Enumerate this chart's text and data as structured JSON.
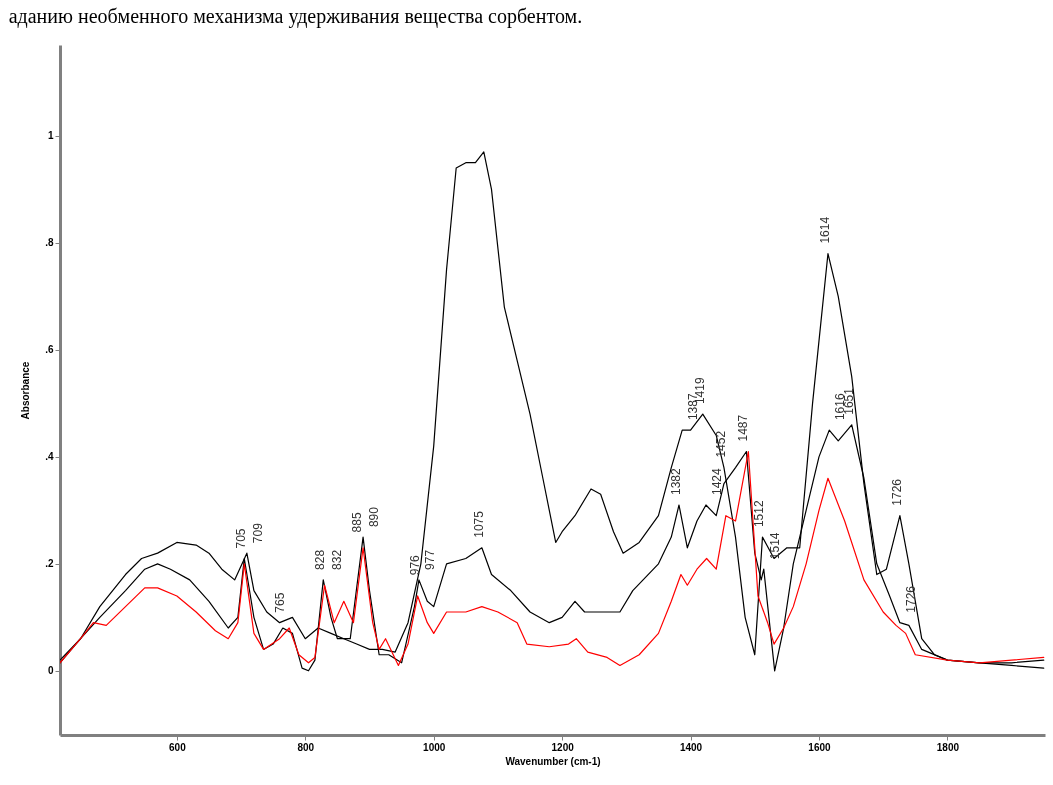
{
  "chart_data": {
    "type": "line",
    "xlabel": "Wavenumber (cm-1)",
    "ylabel": "Absorbance",
    "xlim": [
      418,
      1952
    ],
    "ylim": [
      -0.12,
      1.17
    ],
    "xticks": [
      600,
      800,
      1000,
      1200,
      1400,
      1600,
      1800
    ],
    "yticks": [
      0,
      {
        "value": 0.2,
        "label": ".2"
      },
      {
        "value": 0.4,
        "label": ".4"
      },
      {
        "value": 0.6,
        "label": ".6"
      },
      {
        "value": 0.8,
        "label": ".8"
      },
      1
    ],
    "grid": false,
    "legend": false,
    "marker": "none",
    "line_style": "solid",
    "series": [
      {
        "color": "#000000",
        "x": [
          418,
          450,
          480,
          520,
          545,
          570,
          600,
          630,
          650,
          670,
          690,
          709,
          720,
          740,
          760,
          780,
          800,
          820,
          840,
          860,
          880,
          900,
          920,
          940,
          960,
          980,
          1000,
          1020,
          1035,
          1050,
          1065,
          1078,
          1090,
          1110,
          1130,
          1150,
          1170,
          1190,
          1200,
          1220,
          1245,
          1260,
          1280,
          1295,
          1320,
          1350,
          1370,
          1387,
          1400,
          1419,
          1440,
          1452,
          1470,
          1485,
          1500,
          1512,
          1530,
          1550,
          1570,
          1590,
          1614,
          1630,
          1651,
          1670,
          1690,
          1705,
          1726,
          1740,
          1760,
          1780,
          1800,
          1850,
          1900,
          1950
        ],
        "values": [
          0.02,
          0.06,
          0.12,
          0.18,
          0.21,
          0.22,
          0.24,
          0.235,
          0.22,
          0.19,
          0.17,
          0.22,
          0.15,
          0.11,
          0.09,
          0.1,
          0.06,
          0.08,
          0.07,
          0.06,
          0.05,
          0.04,
          0.04,
          0.035,
          0.09,
          0.2,
          0.42,
          0.75,
          0.94,
          0.95,
          0.95,
          0.97,
          0.9,
          0.68,
          0.58,
          0.48,
          0.36,
          0.24,
          0.26,
          0.29,
          0.34,
          0.33,
          0.26,
          0.22,
          0.24,
          0.29,
          0.38,
          0.45,
          0.45,
          0.48,
          0.44,
          0.38,
          0.25,
          0.1,
          0.03,
          0.25,
          0.21,
          0.23,
          0.23,
          0.5,
          0.78,
          0.7,
          0.55,
          0.35,
          0.18,
          0.19,
          0.29,
          0.2,
          0.06,
          0.03,
          0.02,
          0.015,
          0.01,
          0.005
        ]
      },
      {
        "color": "#000000",
        "x": [
          418,
          450,
          480,
          520,
          550,
          570,
          590,
          620,
          650,
          680,
          695,
          705,
          720,
          735,
          750,
          765,
          780,
          795,
          805,
          815,
          828,
          840,
          850,
          870,
          890,
          900,
          915,
          930,
          950,
          970,
          977,
          990,
          1000,
          1020,
          1050,
          1075,
          1090,
          1120,
          1150,
          1180,
          1200,
          1220,
          1235,
          1260,
          1290,
          1310,
          1350,
          1370,
          1382,
          1395,
          1410,
          1424,
          1440,
          1452,
          1470,
          1487,
          1500,
          1510,
          1514,
          1531,
          1545,
          1560,
          1580,
          1600,
          1616,
          1630,
          1651,
          1670,
          1690,
          1710,
          1726,
          1740,
          1760,
          1800,
          1850,
          1900,
          1950
        ],
        "values": [
          0.015,
          0.06,
          0.1,
          0.15,
          0.19,
          0.2,
          0.19,
          0.17,
          0.13,
          0.08,
          0.1,
          0.21,
          0.1,
          0.04,
          0.05,
          0.08,
          0.07,
          0.005,
          0,
          0.02,
          0.17,
          0.1,
          0.06,
          0.06,
          0.25,
          0.15,
          0.03,
          0.03,
          0.015,
          0.12,
          0.17,
          0.13,
          0.12,
          0.2,
          0.21,
          0.23,
          0.18,
          0.15,
          0.11,
          0.09,
          0.1,
          0.13,
          0.11,
          0.11,
          0.11,
          0.15,
          0.2,
          0.25,
          0.31,
          0.23,
          0.28,
          0.31,
          0.29,
          0.35,
          0.38,
          0.41,
          0.22,
          0.17,
          0.19,
          0,
          0.08,
          0.2,
          0.3,
          0.4,
          0.45,
          0.43,
          0.46,
          0.36,
          0.2,
          0.14,
          0.09,
          0.085,
          0.04,
          0.02,
          0.015,
          0.015,
          0.02
        ]
      },
      {
        "color": "#ff0000",
        "x": [
          418,
          450,
          470,
          490,
          520,
          550,
          570,
          600,
          630,
          660,
          680,
          695,
          705,
          720,
          735,
          760,
          775,
          790,
          805,
          815,
          830,
          845,
          860,
          875,
          890,
          905,
          915,
          925,
          945,
          960,
          975,
          990,
          1000,
          1020,
          1050,
          1075,
          1100,
          1130,
          1145,
          1180,
          1210,
          1222,
          1240,
          1270,
          1290,
          1320,
          1350,
          1370,
          1385,
          1395,
          1410,
          1425,
          1440,
          1455,
          1470,
          1490,
          1505,
          1520,
          1530,
          1545,
          1560,
          1580,
          1600,
          1614,
          1640,
          1670,
          1700,
          1720,
          1735,
          1750,
          1800,
          1850,
          1900,
          1950
        ],
        "values": [
          0.015,
          0.06,
          0.09,
          0.085,
          0.12,
          0.155,
          0.155,
          0.14,
          0.11,
          0.075,
          0.06,
          0.09,
          0.2,
          0.07,
          0.04,
          0.06,
          0.08,
          0.03,
          0.015,
          0.025,
          0.16,
          0.09,
          0.13,
          0.09,
          0.23,
          0.09,
          0.04,
          0.06,
          0.01,
          0.05,
          0.14,
          0.09,
          0.07,
          0.11,
          0.11,
          0.12,
          0.11,
          0.09,
          0.05,
          0.045,
          0.05,
          0.06,
          0.035,
          0.025,
          0.01,
          0.03,
          0.07,
          0.13,
          0.18,
          0.16,
          0.19,
          0.21,
          0.19,
          0.29,
          0.28,
          0.41,
          0.14,
          0.09,
          0.05,
          0.08,
          0.12,
          0.2,
          0.3,
          0.36,
          0.28,
          0.17,
          0.11,
          0.085,
          0.07,
          0.03,
          0.02,
          0.015,
          0.02,
          0.025
        ]
      }
    ],
    "annotations": [
      "аданию необменного механизма удерживания вещества сорбентом.",
      {
        "text": "705",
        "x": 705,
        "y": 0.21
      },
      {
        "text": "709",
        "x": 709,
        "y": 0.22
      },
      {
        "text": "765",
        "x": 765,
        "y": 0.09
      },
      {
        "text": "828",
        "x": 828,
        "y": 0.17
      },
      {
        "text": "832",
        "x": 832,
        "y": 0.17
      },
      {
        "text": "885",
        "x": 885,
        "y": 0.24
      },
      {
        "text": "890",
        "x": 890,
        "y": 0.25
      },
      {
        "text": "976",
        "x": 976,
        "y": 0.16
      },
      {
        "text": "977",
        "x": 977,
        "y": 0.17
      },
      {
        "text": "1075",
        "x": 1075,
        "y": 0.23
      },
      {
        "text": "1382",
        "x": 1382,
        "y": 0.31
      },
      {
        "text": "1387",
        "x": 1387,
        "y": 0.45
      },
      {
        "text": "1419",
        "x": 1419,
        "y": 0.48
      },
      {
        "text": "1424",
        "x": 1424,
        "y": 0.31
      },
      {
        "text": "1452",
        "x": 1452,
        "y": 0.38
      },
      {
        "text": "1487",
        "x": 1487,
        "y": 0.41
      },
      {
        "text": "1512",
        "x": 1512,
        "y": 0.25
      },
      {
        "text": "1514",
        "x": 1514,
        "y": 0.19
      },
      {
        "text": "1614",
        "x": 1614,
        "y": 0.78
      },
      {
        "text": "1616",
        "x": 1616,
        "y": 0.45
      },
      {
        "text": "1651",
        "x": 1651,
        "y": 0.46
      },
      {
        "text": "1726",
        "x": 1726,
        "y": 0.29
      },
      {
        "text": "1726",
        "x": 1726,
        "y": 0.09
      }
    ]
  }
}
